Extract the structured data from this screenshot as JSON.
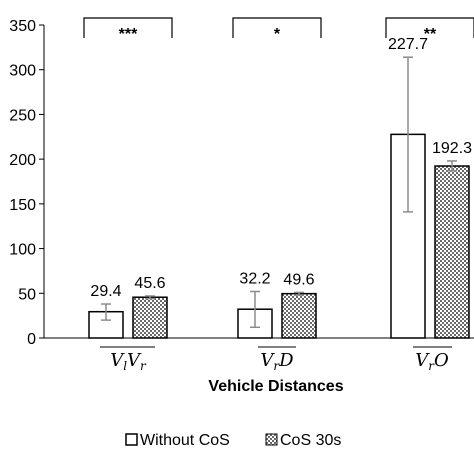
{
  "chart_data": {
    "type": "bar",
    "xlabel": "Vehicle Distances",
    "ylabel": "",
    "ylim": [
      0,
      350
    ],
    "yticks": [
      0,
      50,
      100,
      150,
      200,
      250,
      300,
      350
    ],
    "categories": [
      "V_l V_r",
      "V_r D",
      "V_r O"
    ],
    "series": [
      {
        "name": "Without CoS",
        "values": [
          29.4,
          32.2,
          227.7
        ],
        "errors": [
          [
            20,
            38
          ],
          [
            12,
            52
          ],
          [
            141,
            314
          ]
        ],
        "labels": [
          "29.4",
          "32.2",
          "227.7"
        ],
        "fill": "white"
      },
      {
        "name": "CoS 30s",
        "values": [
          45.6,
          49.6,
          192.3
        ],
        "errors": [
          [
            44,
            47
          ],
          [
            48,
            51
          ],
          [
            187,
            198
          ]
        ],
        "labels": [
          "45.6",
          "49.6",
          "192.3"
        ],
        "fill": "checker"
      }
    ],
    "significance": [
      "***",
      "*",
      "**"
    ],
    "legend_position": "bottom",
    "grid": false
  },
  "colors": {
    "axis": "#000000",
    "error_bar": "#8c8c8c",
    "bar_stroke": "#000000"
  }
}
